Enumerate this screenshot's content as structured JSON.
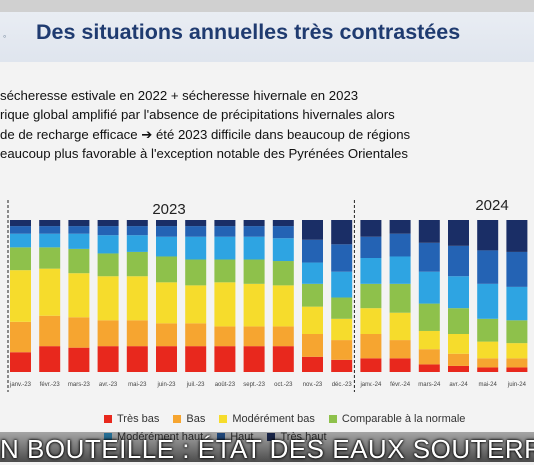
{
  "slide": {
    "title": "Des situations annuelles très contrastées",
    "bullets": [
      "sécheresse estivale en 2022 + sécheresse hivernale en 2023",
      "rique global amplifié par l'absence de précipitations hivernales alors",
      "de de recharge efficace ➔ été 2023 difficile dans beaucoup de régions",
      "eaucoup plus favorable à l'exception notable des Pyrénées Orientales"
    ]
  },
  "caption": {
    "text": "N BOUTEILLE : ÉTAT DES EAUX SOUTERR"
  },
  "chart_data": {
    "type": "bar",
    "stacked": true,
    "normalized_percent": true,
    "year_labels": [
      "2023",
      "2024"
    ],
    "categories": [
      "janv.-23",
      "févr.-23",
      "mars-23",
      "avr.-23",
      "mai-23",
      "juin-23",
      "juil.-23",
      "août-23",
      "sept.-23",
      "oct.-23",
      "nov.-23",
      "déc.-23",
      "janv.-24",
      "févr.-24",
      "mars-24",
      "avr.-24",
      "mai-24",
      "juin-24"
    ],
    "visible_tick_labels": [
      "janv.-23",
      "févr.-23",
      "mars-23",
      "avr.-23",
      "mai-23",
      "juin-23",
      "juil.-23",
      "août-23",
      "sept.-23",
      "oct.-23",
      "nov.-23",
      "déc.-23",
      "janv.-24",
      "févr.-24",
      "mars-24",
      "avr.-24",
      "mai-24",
      "juin-24"
    ],
    "series": [
      {
        "name": "Très bas",
        "color": "#e8281d",
        "values": [
          13,
          17,
          16,
          17,
          17,
          17,
          17,
          17,
          17,
          17,
          10,
          8,
          9,
          9,
          5,
          4,
          3,
          3
        ]
      },
      {
        "name": "Bas",
        "color": "#f6a530",
        "values": [
          20,
          20,
          20,
          17,
          17,
          15,
          15,
          13,
          13,
          13,
          15,
          13,
          16,
          12,
          10,
          8,
          6,
          6
        ]
      },
      {
        "name": "Modérément bas",
        "color": "#f6dc2c",
        "values": [
          34,
          31,
          29,
          29,
          29,
          27,
          25,
          29,
          28,
          27,
          18,
          14,
          17,
          18,
          12,
          13,
          11,
          10
        ]
      },
      {
        "name": "Comparable à la normale",
        "color": "#8ec14b",
        "values": [
          15,
          14,
          16,
          15,
          16,
          17,
          17,
          15,
          16,
          16,
          15,
          14,
          16,
          19,
          18,
          17,
          15,
          15
        ]
      },
      {
        "name": "Modérément haut",
        "color": "#2ea4e2",
        "values": [
          9,
          9,
          10,
          12,
          11,
          13,
          15,
          15,
          15,
          15,
          14,
          17,
          17,
          18,
          21,
          21,
          23,
          22
        ]
      },
      {
        "name": "Haut",
        "color": "#2463b4",
        "values": [
          5,
          5,
          5,
          6,
          6,
          7,
          7,
          7,
          7,
          8,
          15,
          18,
          14,
          15,
          19,
          20,
          22,
          23
        ]
      },
      {
        "name": "Très haut",
        "color": "#1a2e66",
        "values": [
          4,
          4,
          4,
          4,
          4,
          4,
          4,
          4,
          4,
          4,
          13,
          16,
          11,
          9,
          15,
          17,
          20,
          21
        ]
      }
    ],
    "ylim": [
      0,
      100
    ],
    "legend": "bottom",
    "grid": false
  }
}
